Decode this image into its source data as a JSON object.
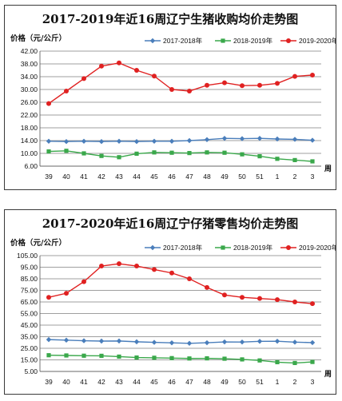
{
  "chart_data": [
    {
      "type": "line",
      "title": "2017-2019年近16周辽宁生猪收购均价走势图",
      "ylabel": "价格（元/公斤）",
      "xlabel": "周",
      "categories": [
        "39",
        "40",
        "41",
        "42",
        "43",
        "44",
        "45",
        "46",
        "47",
        "48",
        "49",
        "50",
        "51",
        "1",
        "2",
        "3"
      ],
      "yticks": [
        "6.00",
        "10.00",
        "14.00",
        "18.00",
        "22.00",
        "26.00",
        "30.00",
        "34.00",
        "38.00",
        "42.00"
      ],
      "ylim": [
        6,
        42
      ],
      "legend_position": "top-right",
      "grid": true,
      "series": [
        {
          "name": "2017-2018年",
          "color": "#4a7ebb",
          "marker": "diamond",
          "values": [
            13.8,
            13.7,
            13.8,
            13.7,
            13.8,
            13.7,
            13.8,
            13.8,
            14.0,
            14.3,
            14.7,
            14.6,
            14.7,
            14.5,
            14.4,
            14.1
          ]
        },
        {
          "name": "2018-2019年",
          "color": "#3aa84b",
          "marker": "square",
          "values": [
            10.6,
            10.8,
            10.0,
            9.2,
            8.8,
            9.9,
            10.3,
            10.2,
            10.1,
            10.3,
            10.2,
            9.7,
            9.1,
            8.3,
            7.9,
            7.5
          ]
        },
        {
          "name": "2019-2020年",
          "color": "#e02121",
          "marker": "circle",
          "values": [
            25.6,
            29.5,
            33.4,
            37.3,
            38.3,
            36.0,
            34.2,
            30.0,
            29.5,
            31.3,
            32.1,
            31.2,
            31.3,
            31.9,
            34.1,
            34.5
          ]
        }
      ]
    },
    {
      "type": "line",
      "title": "2017-2020年近16周辽宁仔猪零售均价走势图",
      "ylabel": "价格（元/公斤）",
      "xlabel": "周",
      "categories": [
        "39",
        "40",
        "41",
        "42",
        "43",
        "44",
        "45",
        "46",
        "47",
        "48",
        "49",
        "50",
        "51",
        "1",
        "2",
        "3"
      ],
      "yticks": [
        "5.00",
        "15.00",
        "25.00",
        "35.00",
        "45.00",
        "55.00",
        "65.00",
        "75.00",
        "85.00",
        "95.00",
        "105.00"
      ],
      "ylim": [
        5,
        105
      ],
      "legend_position": "top-right",
      "grid": true,
      "series": [
        {
          "name": "2017-2018年",
          "color": "#4a7ebb",
          "marker": "diamond",
          "values": [
            32.5,
            32.0,
            31.5,
            31.2,
            31.3,
            30.6,
            30.1,
            29.7,
            29.3,
            29.8,
            30.5,
            30.4,
            31.0,
            31.1,
            30.3,
            29.9
          ]
        },
        {
          "name": "2018-2019年",
          "color": "#3aa84b",
          "marker": "square",
          "values": [
            19.0,
            18.8,
            18.6,
            18.5,
            17.8,
            17.0,
            16.8,
            16.5,
            16.2,
            16.3,
            16.0,
            15.4,
            14.5,
            13.0,
            12.3,
            13.2
          ]
        },
        {
          "name": "2019-2020年",
          "color": "#e02121",
          "marker": "circle",
          "values": [
            69.0,
            72.5,
            82.5,
            96.0,
            98.0,
            96.0,
            93.0,
            90.0,
            85.0,
            77.5,
            71.0,
            69.0,
            68.0,
            67.0,
            65.0,
            63.5
          ]
        }
      ]
    }
  ]
}
